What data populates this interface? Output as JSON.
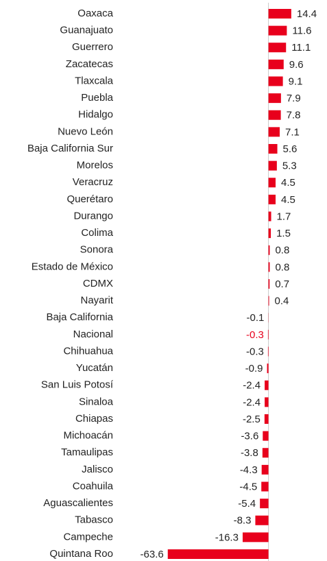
{
  "chart_data": {
    "type": "hbar",
    "categories": [
      "Oaxaca",
      "Guanajuato",
      "Guerrero",
      "Zacatecas",
      "Tlaxcala",
      "Puebla",
      "Hidalgo",
      "Nuevo León",
      "Baja California Sur",
      "Morelos",
      "Veracruz",
      "Querétaro",
      "Durango",
      "Colima",
      "Sonora",
      "Estado de México",
      "CDMX",
      "Nayarit",
      "Baja California",
      "Nacional",
      "Chihuahua",
      "Yucatán",
      "San Luis Potosí",
      "Sinaloa",
      "Chiapas",
      "Michoacán",
      "Tamaulipas",
      "Jalisco",
      "Coahuila",
      "Aguascalientes",
      "Tabasco",
      "Campeche",
      "Quintana Roo"
    ],
    "values": [
      14.4,
      11.6,
      11.1,
      9.6,
      9.1,
      7.9,
      7.8,
      7.1,
      5.6,
      5.3,
      4.5,
      4.5,
      1.7,
      1.5,
      0.8,
      0.8,
      0.7,
      0.4,
      -0.1,
      -0.3,
      -0.3,
      -0.9,
      -2.4,
      -2.4,
      -2.5,
      -3.6,
      -3.8,
      -4.3,
      -4.5,
      -5.4,
      -8.3,
      -16.3,
      -63.6
    ],
    "color": "#e8001c",
    "highlight_category": "Nacional",
    "highlight_color": "#e8001c",
    "xlim": [
      -65,
      20
    ]
  }
}
